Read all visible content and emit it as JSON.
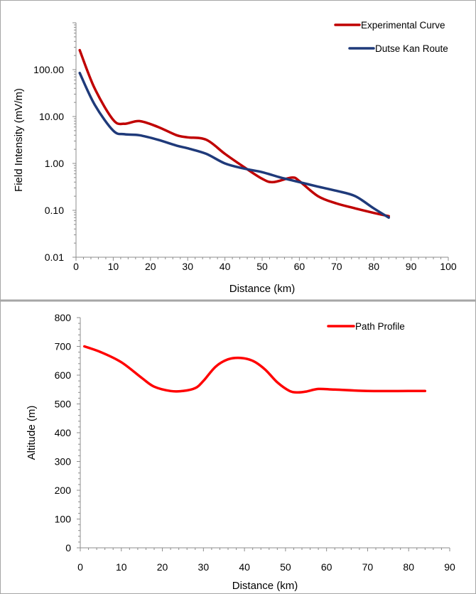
{
  "chart_data": [
    {
      "type": "line",
      "xlabel": "Distance (km)",
      "ylabel": "Field Intensity (mV/m)",
      "yscale": "log",
      "xlim": [
        0,
        100
      ],
      "ylim": [
        0.01,
        1000
      ],
      "x_ticks": [
        "0",
        "10",
        "20",
        "30",
        "40",
        "50",
        "60",
        "70",
        "80",
        "90",
        "100"
      ],
      "y_ticks": [
        "0.01",
        "0.10",
        "1.00",
        "10.00",
        "100.00"
      ],
      "legend_position": "top-right",
      "grid": false,
      "series": [
        {
          "name": "Experimental Curve",
          "color": "#c00000",
          "x": [
            1,
            5,
            10,
            13,
            17,
            22,
            27,
            30,
            35,
            40,
            45,
            50,
            53,
            58,
            60,
            65,
            70,
            75,
            80,
            84
          ],
          "y": [
            260,
            40,
            8.5,
            7,
            8,
            6,
            4,
            3.6,
            3.2,
            1.6,
            0.85,
            0.47,
            0.4,
            0.5,
            0.42,
            0.2,
            0.14,
            0.11,
            0.088,
            0.075
          ]
        },
        {
          "name": "Dutse Kan Route",
          "color": "#1f3a7a",
          "x": [
            1,
            5,
            10,
            13,
            17,
            22,
            27,
            30,
            35,
            40,
            45,
            50,
            55,
            60,
            65,
            70,
            75,
            80,
            84
          ],
          "y": [
            85,
            18,
            5,
            4.2,
            4,
            3.2,
            2.4,
            2.1,
            1.6,
            1,
            0.78,
            0.65,
            0.5,
            0.4,
            0.32,
            0.26,
            0.2,
            0.11,
            0.07
          ]
        }
      ]
    },
    {
      "type": "line",
      "xlabel": "Distance (km)",
      "ylabel": "Altitude (m)",
      "xlim": [
        0,
        90
      ],
      "ylim": [
        0,
        800
      ],
      "x_ticks": [
        "0",
        "10",
        "20",
        "30",
        "40",
        "50",
        "60",
        "70",
        "80",
        "90"
      ],
      "y_ticks": [
        "0",
        "100",
        "200",
        "300",
        "400",
        "500",
        "600",
        "700",
        "800"
      ],
      "legend_position": "top-right",
      "grid": false,
      "series": [
        {
          "name": "Path Profile",
          "color": "#ff0000",
          "x": [
            1,
            5,
            10,
            15,
            18,
            22,
            25,
            28,
            30,
            33,
            36,
            39,
            42,
            45,
            48,
            51,
            53,
            55,
            58,
            62,
            70,
            80,
            84
          ],
          "y": [
            700,
            680,
            645,
            590,
            560,
            545,
            545,
            555,
            580,
            630,
            655,
            660,
            650,
            620,
            575,
            545,
            540,
            543,
            552,
            550,
            545,
            545,
            545
          ]
        }
      ]
    }
  ]
}
